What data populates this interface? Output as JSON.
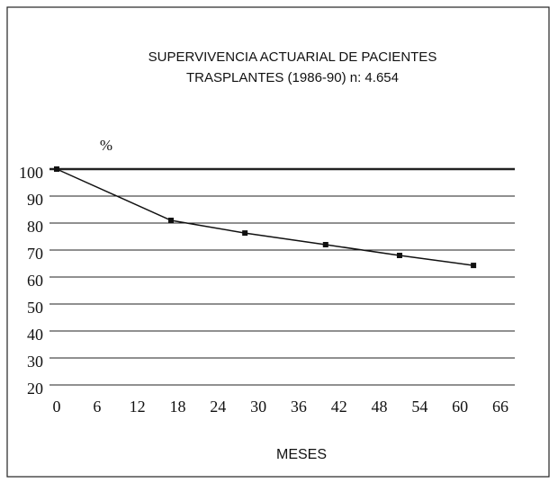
{
  "chart_data": {
    "type": "line",
    "title": [
      "SUPERVIVENCIA  ACTUARIAL  DE  PACIENTES",
      "TRASPLANTES  (1986-90)  n:  4.654"
    ],
    "ylabel": "%",
    "xlabel": "MESES",
    "x": [
      0,
      17,
      28,
      40,
      51,
      62
    ],
    "series": [
      {
        "color": "#111111",
        "values": [
          100,
          81,
          76.3,
          72,
          68,
          64.3
        ]
      }
    ],
    "xlim": [
      0,
      66
    ],
    "xticks": [
      0,
      6,
      12,
      18,
      24,
      30,
      36,
      42,
      48,
      54,
      60,
      66
    ],
    "ylim": [
      20,
      100
    ],
    "yticks": [
      20,
      30,
      40,
      50,
      60,
      70,
      80,
      90,
      100
    ],
    "grid": true
  }
}
